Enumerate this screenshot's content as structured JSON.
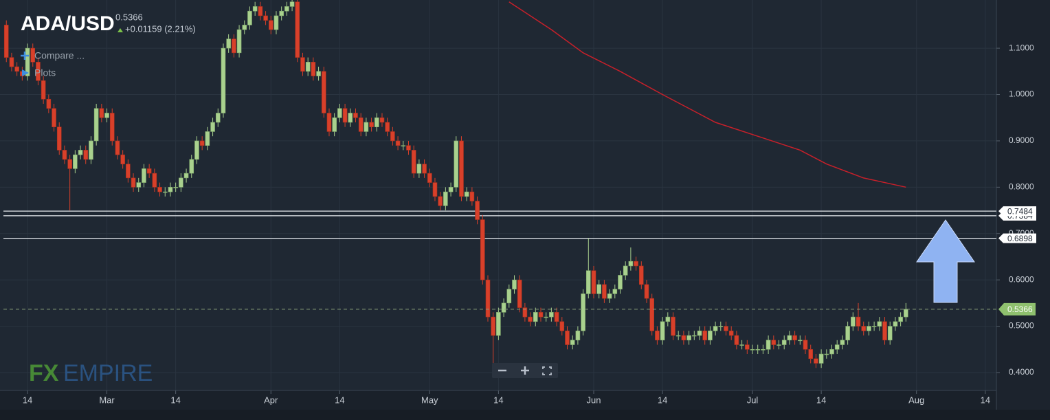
{
  "chart_data": {
    "type": "candlestick",
    "title": "ADA/USD",
    "last_price": 0.5366,
    "change": "+0.01159 (2.21%)",
    "menu": [
      "Compare ...",
      "Plots"
    ],
    "logo": [
      "FX",
      "EMPIRE"
    ],
    "up_color": "#a9d18e",
    "down_color": "#d8402a",
    "grid": true,
    "xlim": [
      39.8,
      228.1
    ],
    "ylim": [
      0.3614,
      1.204
    ],
    "xticks": [
      {
        "value": 45,
        "label": "14"
      },
      {
        "value": 60,
        "label": "Mar"
      },
      {
        "value": 73,
        "label": "14"
      },
      {
        "value": 91,
        "label": "Apr"
      },
      {
        "value": 104,
        "label": "14"
      },
      {
        "value": 121,
        "label": "May"
      },
      {
        "value": 134,
        "label": "14"
      },
      {
        "value": 152,
        "label": "Jun"
      },
      {
        "value": 165,
        "label": "14"
      },
      {
        "value": 182,
        "label": "Jul"
      },
      {
        "value": 195,
        "label": "14"
      },
      {
        "value": 213,
        "label": "Aug"
      },
      {
        "value": 226,
        "label": "14"
      }
    ],
    "yticks": [
      {
        "value": 0.4,
        "label": "0.4000"
      },
      {
        "value": 0.5,
        "label": "0.5000"
      },
      {
        "value": 0.6,
        "label": "0.6000"
      },
      {
        "value": 0.7,
        "label": "0.7000"
      },
      {
        "value": 0.8,
        "label": "0.8000"
      },
      {
        "value": 0.9,
        "label": "0.9000"
      },
      {
        "value": 1.0,
        "label": "1.0000"
      },
      {
        "value": 1.1,
        "label": "1.1000"
      }
    ],
    "levels": [
      0.7484,
      0.7384,
      0.6898
    ],
    "x": [
      41,
      42,
      43,
      44,
      45,
      46,
      47,
      48,
      49,
      50,
      51,
      52,
      53,
      54,
      55,
      56,
      57,
      58,
      59,
      60,
      61,
      62,
      63,
      64,
      65,
      66,
      67,
      68,
      69,
      70,
      71,
      72,
      73,
      74,
      75,
      76,
      77,
      78,
      79,
      80,
      81,
      82,
      83,
      84,
      85,
      86,
      87,
      88,
      89,
      90,
      91,
      92,
      93,
      94,
      95,
      96,
      97,
      98,
      99,
      100,
      101,
      102,
      103,
      104,
      105,
      106,
      107,
      108,
      109,
      110,
      111,
      112,
      113,
      114,
      115,
      116,
      117,
      118,
      119,
      120,
      121,
      122,
      123,
      124,
      125,
      126,
      127,
      128,
      129,
      130,
      131,
      132,
      133,
      134,
      135,
      136,
      137,
      138,
      139,
      140,
      141,
      142,
      143,
      144,
      145,
      146,
      147,
      148,
      149,
      150,
      151,
      152,
      153,
      154,
      155,
      156,
      157,
      158,
      159,
      160,
      161,
      162,
      163,
      164,
      165,
      166,
      167,
      168,
      169,
      170,
      171,
      172,
      173,
      174,
      175,
      176,
      177,
      178,
      179,
      180,
      181,
      182,
      183,
      184,
      185,
      186,
      187,
      188,
      189,
      190,
      191,
      192,
      193,
      194,
      195,
      196,
      197,
      198,
      199,
      200,
      201,
      202,
      203,
      204,
      205,
      206,
      207,
      208,
      209,
      210,
      211
    ],
    "open": [
      1.15,
      1.08,
      1.06,
      1.05,
      1.04,
      1.1,
      1.07,
      1.03,
      0.99,
      0.97,
      0.93,
      0.88,
      0.86,
      0.84,
      0.87,
      0.88,
      0.86,
      0.9,
      0.97,
      0.95,
      0.96,
      0.9,
      0.87,
      0.85,
      0.82,
      0.8,
      0.81,
      0.84,
      0.83,
      0.8,
      0.79,
      0.79,
      0.8,
      0.8,
      0.82,
      0.83,
      0.86,
      0.9,
      0.89,
      0.92,
      0.94,
      0.96,
      1.1,
      1.12,
      1.09,
      1.14,
      1.15,
      1.18,
      1.19,
      1.17,
      1.16,
      1.14,
      1.17,
      1.18,
      1.19,
      1.2,
      1.08,
      1.05,
      1.07,
      1.04,
      1.05,
      0.96,
      0.92,
      0.95,
      0.97,
      0.94,
      0.96,
      0.95,
      0.92,
      0.94,
      0.93,
      0.95,
      0.94,
      0.92,
      0.9,
      0.89,
      0.89,
      0.88,
      0.83,
      0.85,
      0.83,
      0.81,
      0.78,
      0.76,
      0.79,
      0.8,
      0.9,
      0.78,
      0.79,
      0.77,
      0.73,
      0.6,
      0.52,
      0.48,
      0.53,
      0.55,
      0.58,
      0.6,
      0.54,
      0.52,
      0.51,
      0.53,
      0.52,
      0.52,
      0.53,
      0.51,
      0.49,
      0.46,
      0.47,
      0.49,
      0.57,
      0.62,
      0.57,
      0.59,
      0.56,
      0.57,
      0.58,
      0.61,
      0.63,
      0.64,
      0.63,
      0.59,
      0.56,
      0.49,
      0.47,
      0.51,
      0.52,
      0.48,
      0.48,
      0.47,
      0.48,
      0.48,
      0.49,
      0.47,
      0.49,
      0.5,
      0.5,
      0.49,
      0.48,
      0.46,
      0.46,
      0.45,
      0.45,
      0.45,
      0.45,
      0.47,
      0.46,
      0.46,
      0.47,
      0.48,
      0.47,
      0.47,
      0.45,
      0.43,
      0.42,
      0.44,
      0.44,
      0.45,
      0.46,
      0.47,
      0.5,
      0.52,
      0.5,
      0.49,
      0.5,
      0.5,
      0.51,
      0.47,
      0.5,
      0.51,
      0.52
    ],
    "high": [
      1.16,
      1.09,
      1.07,
      1.06,
      1.11,
      1.11,
      1.08,
      1.04,
      1.0,
      0.98,
      0.94,
      0.89,
      0.87,
      0.88,
      0.89,
      0.89,
      0.91,
      0.98,
      0.98,
      0.97,
      0.97,
      0.91,
      0.88,
      0.86,
      0.83,
      0.82,
      0.85,
      0.85,
      0.84,
      0.81,
      0.8,
      0.81,
      0.81,
      0.83,
      0.84,
      0.87,
      0.91,
      0.91,
      0.93,
      0.95,
      0.97,
      1.11,
      1.13,
      1.13,
      1.15,
      1.16,
      1.19,
      1.2,
      1.2,
      1.18,
      1.17,
      1.18,
      1.19,
      1.2,
      1.21,
      1.21,
      1.09,
      1.08,
      1.08,
      1.06,
      1.06,
      0.97,
      0.96,
      0.98,
      0.98,
      0.97,
      0.97,
      0.96,
      0.95,
      0.95,
      0.96,
      0.96,
      0.95,
      0.93,
      0.91,
      0.9,
      0.9,
      0.89,
      0.86,
      0.86,
      0.84,
      0.82,
      0.79,
      0.8,
      0.81,
      0.91,
      0.91,
      0.8,
      0.8,
      0.78,
      0.74,
      0.61,
      0.53,
      0.54,
      0.56,
      0.59,
      0.61,
      0.61,
      0.55,
      0.53,
      0.54,
      0.54,
      0.53,
      0.54,
      0.54,
      0.52,
      0.5,
      0.48,
      0.5,
      0.58,
      0.69,
      0.63,
      0.6,
      0.6,
      0.58,
      0.59,
      0.62,
      0.64,
      0.67,
      0.65,
      0.64,
      0.6,
      0.57,
      0.5,
      0.52,
      0.53,
      0.53,
      0.49,
      0.49,
      0.49,
      0.49,
      0.5,
      0.5,
      0.5,
      0.51,
      0.51,
      0.51,
      0.5,
      0.49,
      0.47,
      0.47,
      0.46,
      0.46,
      0.46,
      0.48,
      0.48,
      0.47,
      0.48,
      0.49,
      0.49,
      0.48,
      0.48,
      0.46,
      0.44,
      0.45,
      0.45,
      0.46,
      0.47,
      0.48,
      0.51,
      0.53,
      0.55,
      0.51,
      0.51,
      0.51,
      0.52,
      0.52,
      0.51,
      0.52,
      0.53,
      0.55
    ],
    "low": [
      1.07,
      1.05,
      1.04,
      1.03,
      1.03,
      1.06,
      1.02,
      0.98,
      0.96,
      0.92,
      0.87,
      0.85,
      0.75,
      0.83,
      0.86,
      0.85,
      0.85,
      0.89,
      0.94,
      0.94,
      0.89,
      0.86,
      0.84,
      0.81,
      0.79,
      0.79,
      0.8,
      0.82,
      0.79,
      0.78,
      0.78,
      0.78,
      0.79,
      0.79,
      0.81,
      0.82,
      0.85,
      0.88,
      0.88,
      0.91,
      0.93,
      0.95,
      1.09,
      1.08,
      1.08,
      1.13,
      1.14,
      1.17,
      1.16,
      1.15,
      1.13,
      1.13,
      1.16,
      1.17,
      1.18,
      1.07,
      1.04,
      1.04,
      1.03,
      1.03,
      0.95,
      0.91,
      0.91,
      0.94,
      0.93,
      0.93,
      0.94,
      0.91,
      0.91,
      0.92,
      0.92,
      0.93,
      0.91,
      0.89,
      0.88,
      0.88,
      0.87,
      0.82,
      0.82,
      0.82,
      0.8,
      0.77,
      0.75,
      0.75,
      0.78,
      0.79,
      0.77,
      0.77,
      0.76,
      0.72,
      0.59,
      0.51,
      0.39,
      0.47,
      0.52,
      0.54,
      0.57,
      0.53,
      0.51,
      0.5,
      0.5,
      0.51,
      0.51,
      0.51,
      0.5,
      0.48,
      0.45,
      0.45,
      0.46,
      0.48,
      0.56,
      0.56,
      0.56,
      0.55,
      0.55,
      0.56,
      0.57,
      0.6,
      0.62,
      0.62,
      0.58,
      0.55,
      0.48,
      0.46,
      0.46,
      0.5,
      0.47,
      0.47,
      0.46,
      0.46,
      0.47,
      0.47,
      0.46,
      0.46,
      0.48,
      0.49,
      0.48,
      0.47,
      0.45,
      0.45,
      0.44,
      0.44,
      0.44,
      0.44,
      0.44,
      0.45,
      0.45,
      0.45,
      0.46,
      0.46,
      0.46,
      0.44,
      0.42,
      0.41,
      0.41,
      0.43,
      0.43,
      0.44,
      0.45,
      0.46,
      0.49,
      0.49,
      0.48,
      0.48,
      0.49,
      0.49,
      0.46,
      0.46,
      0.49,
      0.5,
      0.51
    ],
    "close": [
      1.08,
      1.06,
      1.05,
      1.04,
      1.1,
      1.07,
      1.03,
      0.99,
      0.97,
      0.93,
      0.88,
      0.86,
      0.84,
      0.87,
      0.88,
      0.86,
      0.9,
      0.97,
      0.95,
      0.96,
      0.9,
      0.87,
      0.85,
      0.82,
      0.8,
      0.81,
      0.84,
      0.83,
      0.8,
      0.79,
      0.79,
      0.8,
      0.8,
      0.82,
      0.83,
      0.86,
      0.9,
      0.89,
      0.92,
      0.94,
      0.96,
      1.1,
      1.12,
      1.09,
      1.14,
      1.15,
      1.18,
      1.19,
      1.17,
      1.16,
      1.14,
      1.17,
      1.18,
      1.19,
      1.2,
      1.08,
      1.05,
      1.07,
      1.04,
      1.05,
      0.96,
      0.92,
      0.95,
      0.97,
      0.94,
      0.96,
      0.95,
      0.92,
      0.94,
      0.93,
      0.95,
      0.94,
      0.92,
      0.9,
      0.89,
      0.89,
      0.88,
      0.83,
      0.85,
      0.83,
      0.81,
      0.78,
      0.76,
      0.79,
      0.8,
      0.9,
      0.78,
      0.79,
      0.77,
      0.73,
      0.6,
      0.52,
      0.48,
      0.53,
      0.55,
      0.58,
      0.6,
      0.54,
      0.52,
      0.51,
      0.53,
      0.52,
      0.52,
      0.53,
      0.51,
      0.49,
      0.46,
      0.47,
      0.49,
      0.57,
      0.62,
      0.57,
      0.59,
      0.56,
      0.57,
      0.58,
      0.61,
      0.63,
      0.64,
      0.63,
      0.59,
      0.56,
      0.49,
      0.47,
      0.51,
      0.52,
      0.48,
      0.48,
      0.47,
      0.48,
      0.48,
      0.49,
      0.47,
      0.49,
      0.5,
      0.5,
      0.49,
      0.48,
      0.46,
      0.46,
      0.45,
      0.45,
      0.45,
      0.45,
      0.47,
      0.46,
      0.46,
      0.47,
      0.48,
      0.47,
      0.47,
      0.45,
      0.43,
      0.42,
      0.44,
      0.44,
      0.45,
      0.46,
      0.47,
      0.5,
      0.52,
      0.5,
      0.49,
      0.5,
      0.5,
      0.51,
      0.47,
      0.5,
      0.51,
      0.52,
      0.5366
    ],
    "moving_average": {
      "color": "#c8202a",
      "x": [
        136,
        144,
        150,
        157,
        165,
        175,
        183,
        191,
        196,
        203,
        211
      ],
      "values": [
        1.2,
        1.14,
        1.09,
        1.05,
        1.0,
        0.94,
        0.91,
        0.88,
        0.85,
        0.82,
        0.8
      ]
    }
  }
}
